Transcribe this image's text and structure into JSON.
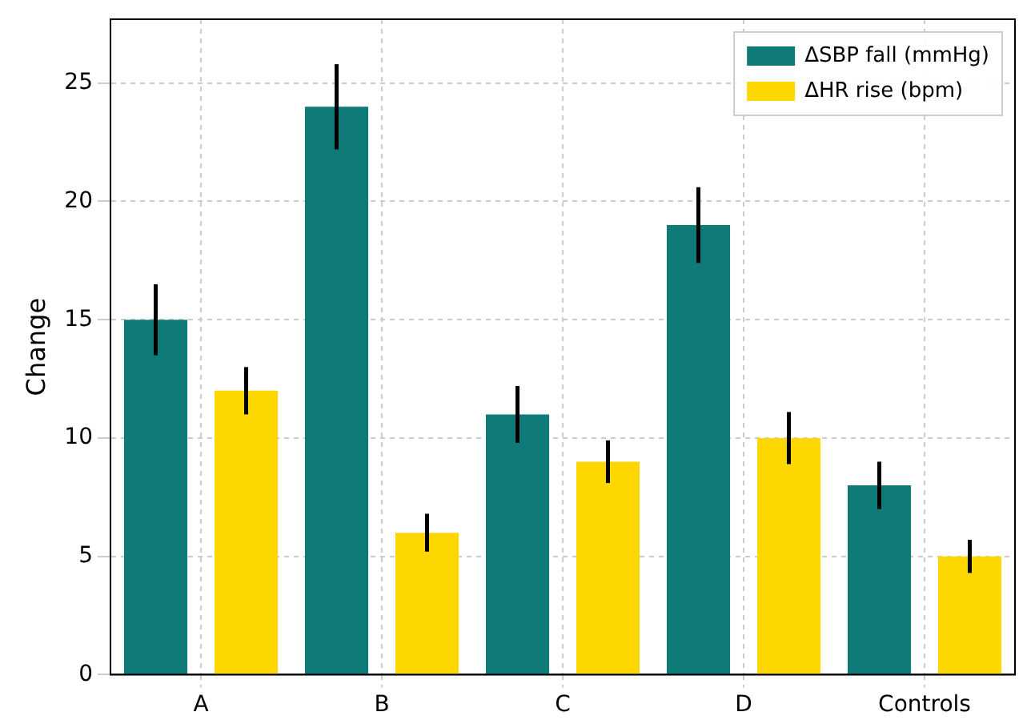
{
  "chart_data": {
    "type": "bar",
    "ylabel": "Change",
    "categories": [
      "A",
      "B",
      "C",
      "D",
      "Controls"
    ],
    "series": [
      {
        "name": "ΔSBP fall (mmHg)",
        "color": "#0f7b78",
        "values": [
          15,
          24,
          11,
          19,
          8
        ],
        "errors": [
          1.5,
          1.8,
          1.2,
          1.6,
          1
        ]
      },
      {
        "name": "ΔHR rise (bpm)",
        "color": "#ffd700",
        "values": [
          12,
          6,
          9,
          10,
          5
        ],
        "errors": [
          1,
          0.8,
          0.9,
          1.1,
          0.7
        ]
      }
    ],
    "ylim": [
      0,
      27.7
    ],
    "yticks": [
      0,
      5,
      10,
      15,
      20,
      25
    ],
    "grid": true,
    "legend": "top right"
  }
}
